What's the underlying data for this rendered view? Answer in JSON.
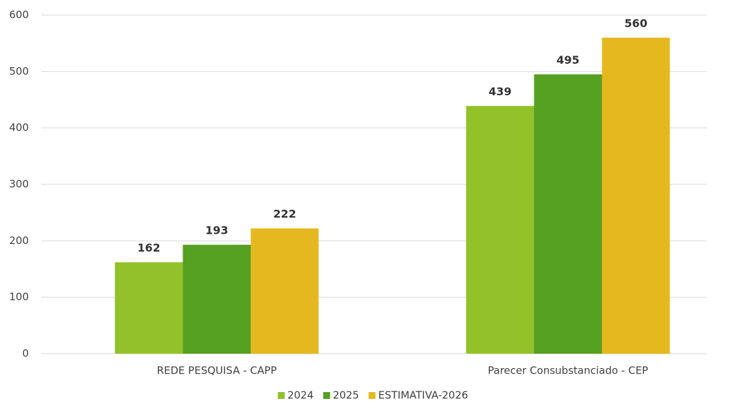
{
  "chart_data": {
    "type": "bar",
    "categories": [
      "REDE PESQUISA - CAPP",
      "Parecer Consubstanciado - CEP"
    ],
    "series": [
      {
        "name": "2024",
        "color": "#93c12a",
        "values": [
          162,
          439
        ]
      },
      {
        "name": "2025",
        "color": "#56a022",
        "values": [
          193,
          495
        ]
      },
      {
        "name": "ESTIMATIVA-2026",
        "color": "#e6b820",
        "values": [
          222,
          560
        ]
      }
    ],
    "ylim": [
      0,
      600
    ],
    "yticks": [
      0,
      100,
      200,
      300,
      400,
      500,
      600
    ],
    "grid": true,
    "legend": "bottom"
  }
}
